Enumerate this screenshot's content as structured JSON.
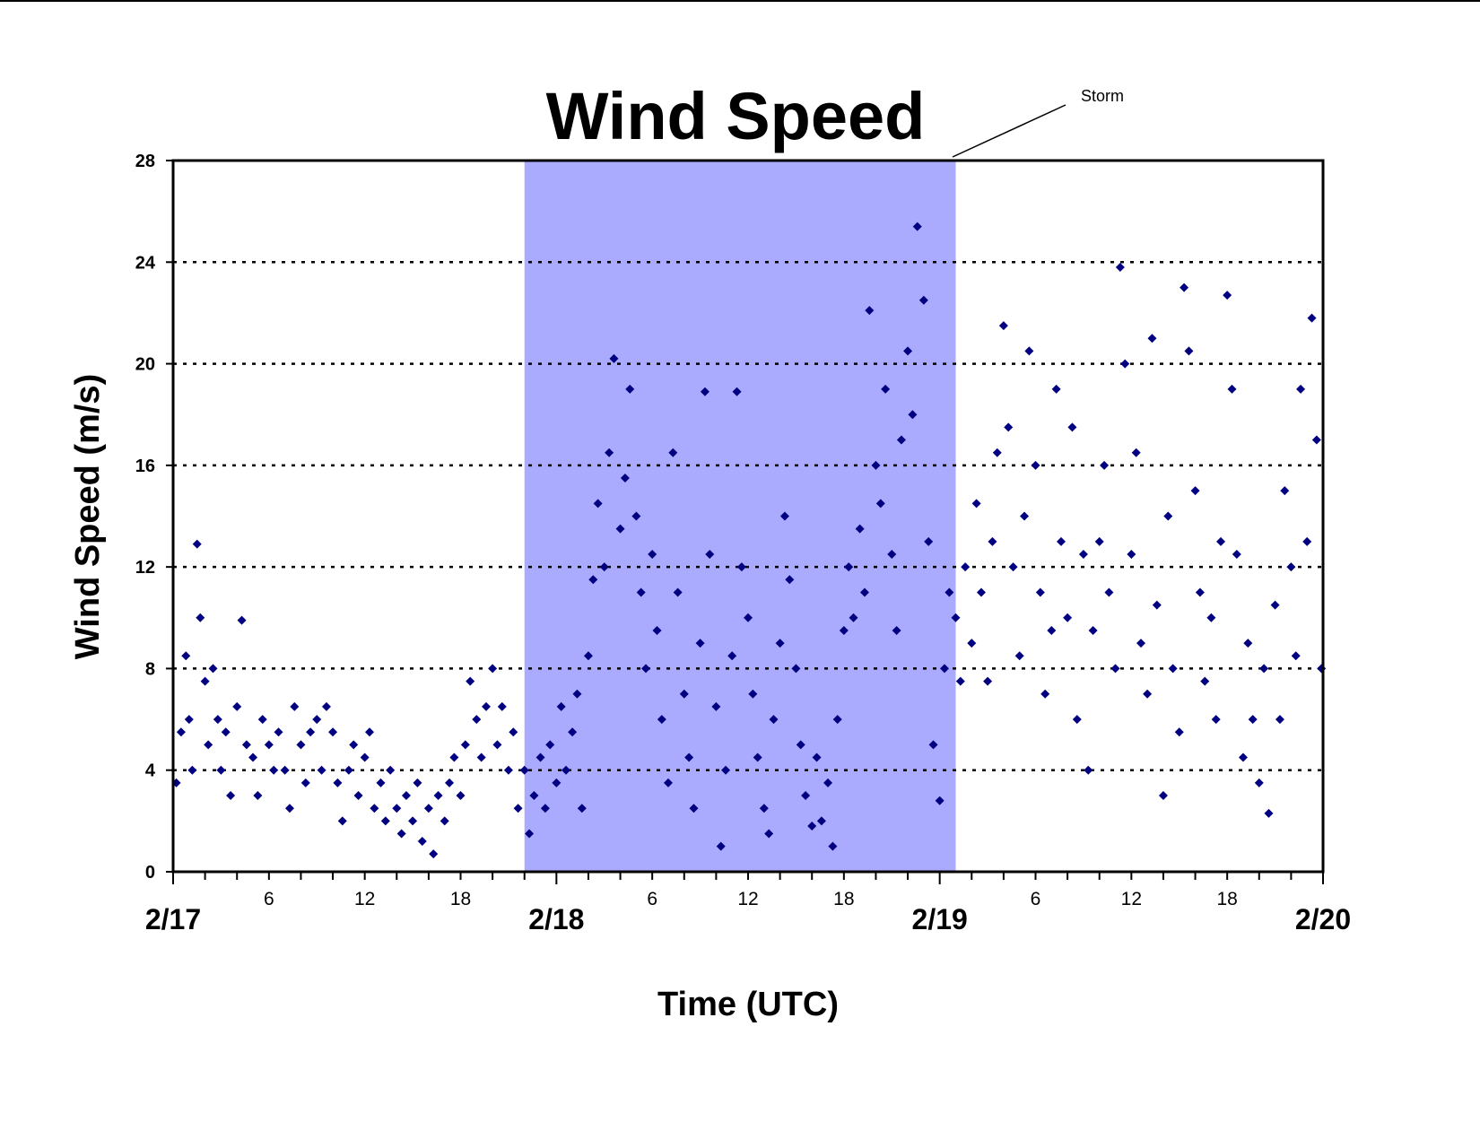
{
  "chart_data": {
    "type": "scatter",
    "title": "Wind Speed",
    "xlabel": "Time (UTC)",
    "ylabel": "Wind Speed (m/s)",
    "x_unit": "hours since 2/17 00 UTC",
    "xlim": [
      0,
      72
    ],
    "ylim": [
      0,
      28
    ],
    "y_ticks": [
      0,
      4,
      8,
      12,
      16,
      20,
      24,
      28
    ],
    "x_hour_ticks": [
      {
        "x": 6,
        "label": "6"
      },
      {
        "x": 12,
        "label": "12"
      },
      {
        "x": 18,
        "label": "18"
      },
      {
        "x": 30,
        "label": "6"
      },
      {
        "x": 36,
        "label": "12"
      },
      {
        "x": 42,
        "label": "18"
      },
      {
        "x": 54,
        "label": "6"
      },
      {
        "x": 60,
        "label": "12"
      },
      {
        "x": 66,
        "label": "18"
      }
    ],
    "x_day_ticks": [
      {
        "x": 0,
        "label": "2/17"
      },
      {
        "x": 24,
        "label": "2/18"
      },
      {
        "x": 48,
        "label": "2/19"
      },
      {
        "x": 72,
        "label": "2/20"
      }
    ],
    "grid": "horizontal dotted at 4, 8, 12, 16, 20, 24",
    "shaded_region": {
      "x_start": 22,
      "x_end": 49,
      "label": "Storm",
      "color": "#aaaaff"
    },
    "marker": "diamond",
    "marker_color": "#000080",
    "series": [
      {
        "name": "",
        "points": [
          [
            0.2,
            3.5
          ],
          [
            0.5,
            5.5
          ],
          [
            0.8,
            8.5
          ],
          [
            1.0,
            6
          ],
          [
            1.2,
            4
          ],
          [
            1.5,
            12.9
          ],
          [
            1.7,
            10
          ],
          [
            2.0,
            7.5
          ],
          [
            2.2,
            5
          ],
          [
            2.5,
            8
          ],
          [
            2.8,
            6
          ],
          [
            3.0,
            4
          ],
          [
            3.3,
            5.5
          ],
          [
            3.6,
            3
          ],
          [
            4.0,
            6.5
          ],
          [
            4.3,
            9.9
          ],
          [
            4.6,
            5
          ],
          [
            5.0,
            4.5
          ],
          [
            5.3,
            3
          ],
          [
            5.6,
            6
          ],
          [
            6.0,
            5
          ],
          [
            6.3,
            4
          ],
          [
            6.6,
            5.5
          ],
          [
            7.0,
            4
          ],
          [
            7.3,
            2.5
          ],
          [
            7.6,
            6.5
          ],
          [
            8.0,
            5
          ],
          [
            8.3,
            3.5
          ],
          [
            8.6,
            5.5
          ],
          [
            9.0,
            6
          ],
          [
            9.3,
            4
          ],
          [
            9.6,
            6.5
          ],
          [
            10.0,
            5.5
          ],
          [
            10.3,
            3.5
          ],
          [
            10.6,
            2
          ],
          [
            11.0,
            4
          ],
          [
            11.3,
            5
          ],
          [
            11.6,
            3
          ],
          [
            12.0,
            4.5
          ],
          [
            12.3,
            5.5
          ],
          [
            12.6,
            2.5
          ],
          [
            13.0,
            3.5
          ],
          [
            13.3,
            2
          ],
          [
            13.6,
            4
          ],
          [
            14.0,
            2.5
          ],
          [
            14.3,
            1.5
          ],
          [
            14.6,
            3
          ],
          [
            15.0,
            2
          ],
          [
            15.3,
            3.5
          ],
          [
            15.6,
            1.2
          ],
          [
            16.0,
            2.5
          ],
          [
            16.3,
            0.7
          ],
          [
            16.6,
            3
          ],
          [
            17.0,
            2
          ],
          [
            17.3,
            3.5
          ],
          [
            17.6,
            4.5
          ],
          [
            18.0,
            3
          ],
          [
            18.3,
            5
          ],
          [
            18.6,
            7.5
          ],
          [
            19.0,
            6
          ],
          [
            19.3,
            4.5
          ],
          [
            19.6,
            6.5
          ],
          [
            20.0,
            8
          ],
          [
            20.3,
            5
          ],
          [
            20.6,
            6.5
          ],
          [
            21.0,
            4
          ],
          [
            21.3,
            5.5
          ],
          [
            21.6,
            2.5
          ],
          [
            22.0,
            4
          ],
          [
            22.3,
            1.5
          ],
          [
            22.6,
            3
          ],
          [
            23.0,
            4.5
          ],
          [
            23.3,
            2.5
          ],
          [
            23.6,
            5
          ],
          [
            24.0,
            3.5
          ],
          [
            24.3,
            6.5
          ],
          [
            24.6,
            4
          ],
          [
            25.0,
            5.5
          ],
          [
            25.3,
            7
          ],
          [
            25.6,
            2.5
          ],
          [
            26.0,
            8.5
          ],
          [
            26.3,
            11.5
          ],
          [
            26.6,
            14.5
          ],
          [
            27.0,
            12
          ],
          [
            27.3,
            16.5
          ],
          [
            27.6,
            20.2
          ],
          [
            28.0,
            13.5
          ],
          [
            28.3,
            15.5
          ],
          [
            28.6,
            19
          ],
          [
            29.0,
            14
          ],
          [
            29.3,
            11
          ],
          [
            29.6,
            8
          ],
          [
            30.0,
            12.5
          ],
          [
            30.3,
            9.5
          ],
          [
            30.6,
            6
          ],
          [
            31.0,
            3.5
          ],
          [
            31.3,
            16.5
          ],
          [
            31.6,
            11
          ],
          [
            32.0,
            7
          ],
          [
            32.3,
            4.5
          ],
          [
            32.6,
            2.5
          ],
          [
            33.0,
            9
          ],
          [
            33.3,
            18.9
          ],
          [
            33.6,
            12.5
          ],
          [
            34.0,
            6.5
          ],
          [
            34.3,
            1
          ],
          [
            34.6,
            4
          ],
          [
            35.0,
            8.5
          ],
          [
            35.3,
            18.9
          ],
          [
            35.6,
            12
          ],
          [
            36.0,
            10
          ],
          [
            36.3,
            7
          ],
          [
            36.6,
            4.5
          ],
          [
            37.0,
            2.5
          ],
          [
            37.3,
            1.5
          ],
          [
            37.6,
            6
          ],
          [
            38.0,
            9
          ],
          [
            38.3,
            14
          ],
          [
            38.6,
            11.5
          ],
          [
            39.0,
            8
          ],
          [
            39.3,
            5
          ],
          [
            39.6,
            3
          ],
          [
            40.0,
            1.8
          ],
          [
            40.3,
            4.5
          ],
          [
            40.6,
            2
          ],
          [
            41.0,
            3.5
          ],
          [
            41.3,
            1
          ],
          [
            41.6,
            6
          ],
          [
            42.0,
            9.5
          ],
          [
            42.3,
            12
          ],
          [
            42.6,
            10
          ],
          [
            43.0,
            13.5
          ],
          [
            43.3,
            11
          ],
          [
            43.6,
            22.1
          ],
          [
            44.0,
            16
          ],
          [
            44.3,
            14.5
          ],
          [
            44.6,
            19
          ],
          [
            45.0,
            12.5
          ],
          [
            45.3,
            9.5
          ],
          [
            45.6,
            17
          ],
          [
            46.0,
            20.5
          ],
          [
            46.3,
            18
          ],
          [
            46.6,
            25.4
          ],
          [
            47.0,
            22.5
          ],
          [
            47.3,
            13
          ],
          [
            47.6,
            5
          ],
          [
            48.0,
            2.8
          ],
          [
            48.3,
            8
          ],
          [
            48.6,
            11
          ],
          [
            49.0,
            10
          ],
          [
            49.3,
            7.5
          ],
          [
            49.6,
            12
          ],
          [
            50.0,
            9
          ],
          [
            50.3,
            14.5
          ],
          [
            50.6,
            11
          ],
          [
            51.0,
            7.5
          ],
          [
            51.3,
            13
          ],
          [
            51.6,
            16.5
          ],
          [
            52.0,
            21.5
          ],
          [
            52.3,
            17.5
          ],
          [
            52.6,
            12
          ],
          [
            53.0,
            8.5
          ],
          [
            53.3,
            14
          ],
          [
            53.6,
            20.5
          ],
          [
            54.0,
            16
          ],
          [
            54.3,
            11
          ],
          [
            54.6,
            7
          ],
          [
            55.0,
            9.5
          ],
          [
            55.3,
            19
          ],
          [
            55.6,
            13
          ],
          [
            56.0,
            10
          ],
          [
            56.3,
            17.5
          ],
          [
            56.6,
            6
          ],
          [
            57.0,
            12.5
          ],
          [
            57.3,
            4
          ],
          [
            57.6,
            9.5
          ],
          [
            58.0,
            13
          ],
          [
            58.3,
            16
          ],
          [
            58.6,
            11
          ],
          [
            59.0,
            8
          ],
          [
            59.3,
            23.8
          ],
          [
            59.6,
            20
          ],
          [
            60.0,
            12.5
          ],
          [
            60.3,
            16.5
          ],
          [
            60.6,
            9
          ],
          [
            61.0,
            7
          ],
          [
            61.3,
            21
          ],
          [
            61.6,
            10.5
          ],
          [
            62.0,
            3
          ],
          [
            62.3,
            14
          ],
          [
            62.6,
            8
          ],
          [
            63.0,
            5.5
          ],
          [
            63.3,
            23
          ],
          [
            63.6,
            20.5
          ],
          [
            64.0,
            15
          ],
          [
            64.3,
            11
          ],
          [
            64.6,
            7.5
          ],
          [
            65.0,
            10
          ],
          [
            65.3,
            6
          ],
          [
            65.6,
            13
          ],
          [
            66.0,
            22.7
          ],
          [
            66.3,
            19
          ],
          [
            66.6,
            12.5
          ],
          [
            67.0,
            4.5
          ],
          [
            67.3,
            9
          ],
          [
            67.6,
            6
          ],
          [
            68.0,
            3.5
          ],
          [
            68.3,
            8
          ],
          [
            68.6,
            2.3
          ],
          [
            69.0,
            10.5
          ],
          [
            69.3,
            6
          ],
          [
            69.6,
            15
          ],
          [
            70.0,
            12
          ],
          [
            70.3,
            8.5
          ],
          [
            70.6,
            19
          ],
          [
            71.0,
            13
          ],
          [
            71.3,
            21.8
          ],
          [
            71.6,
            17
          ],
          [
            71.9,
            8
          ]
        ]
      }
    ]
  }
}
